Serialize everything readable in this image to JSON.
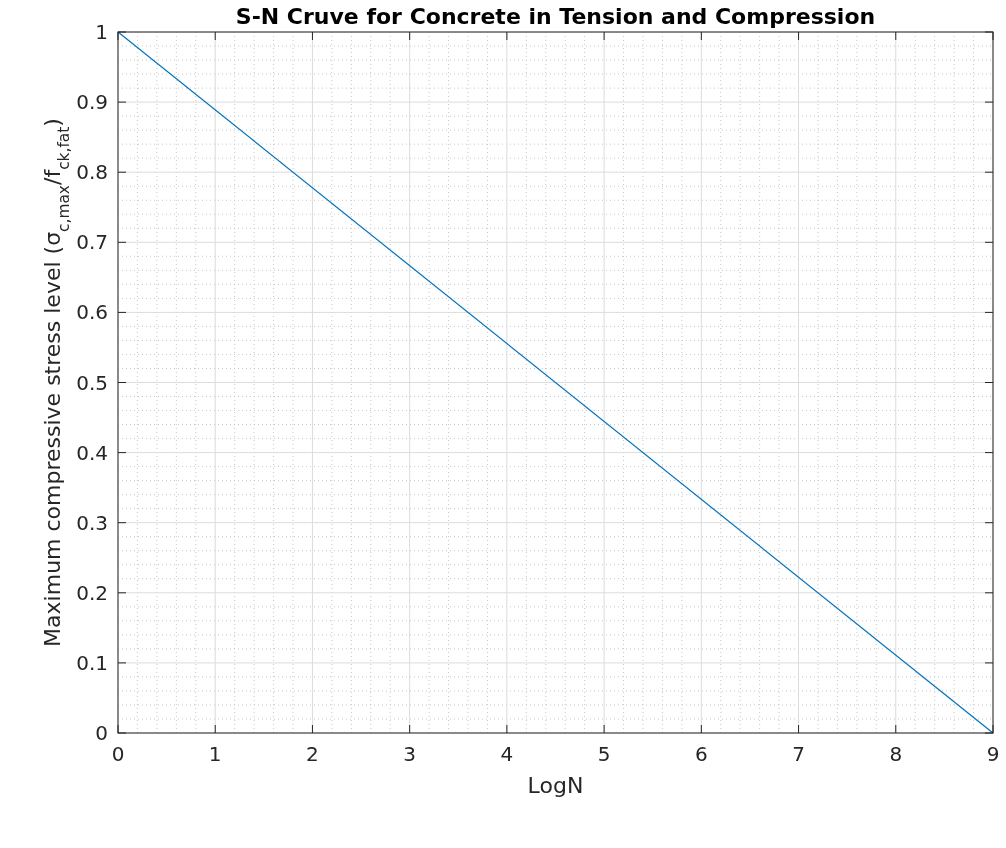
{
  "chart_data": {
    "type": "line",
    "title": "S-N Cruve for Concrete in Tension and Compression",
    "xlabel": "LogN",
    "ylabel": "Maximum compressive stress level (σ$_{c,max}$/f$_{ck,fat}$)",
    "x": [
      0,
      9
    ],
    "series": [
      {
        "color": "#0072bd",
        "values": [
          1,
          0
        ]
      }
    ],
    "xlim": [
      0,
      9
    ],
    "xticks": [
      0,
      1,
      2,
      3,
      4,
      5,
      6,
      7,
      8,
      9
    ],
    "ylim": [
      0,
      1
    ],
    "yticks": [
      0,
      0.1,
      0.2,
      0.3,
      0.4,
      0.5,
      0.6,
      0.7,
      0.8,
      0.9,
      1
    ],
    "grid": true,
    "marker": "none",
    "line_style": "solid"
  }
}
